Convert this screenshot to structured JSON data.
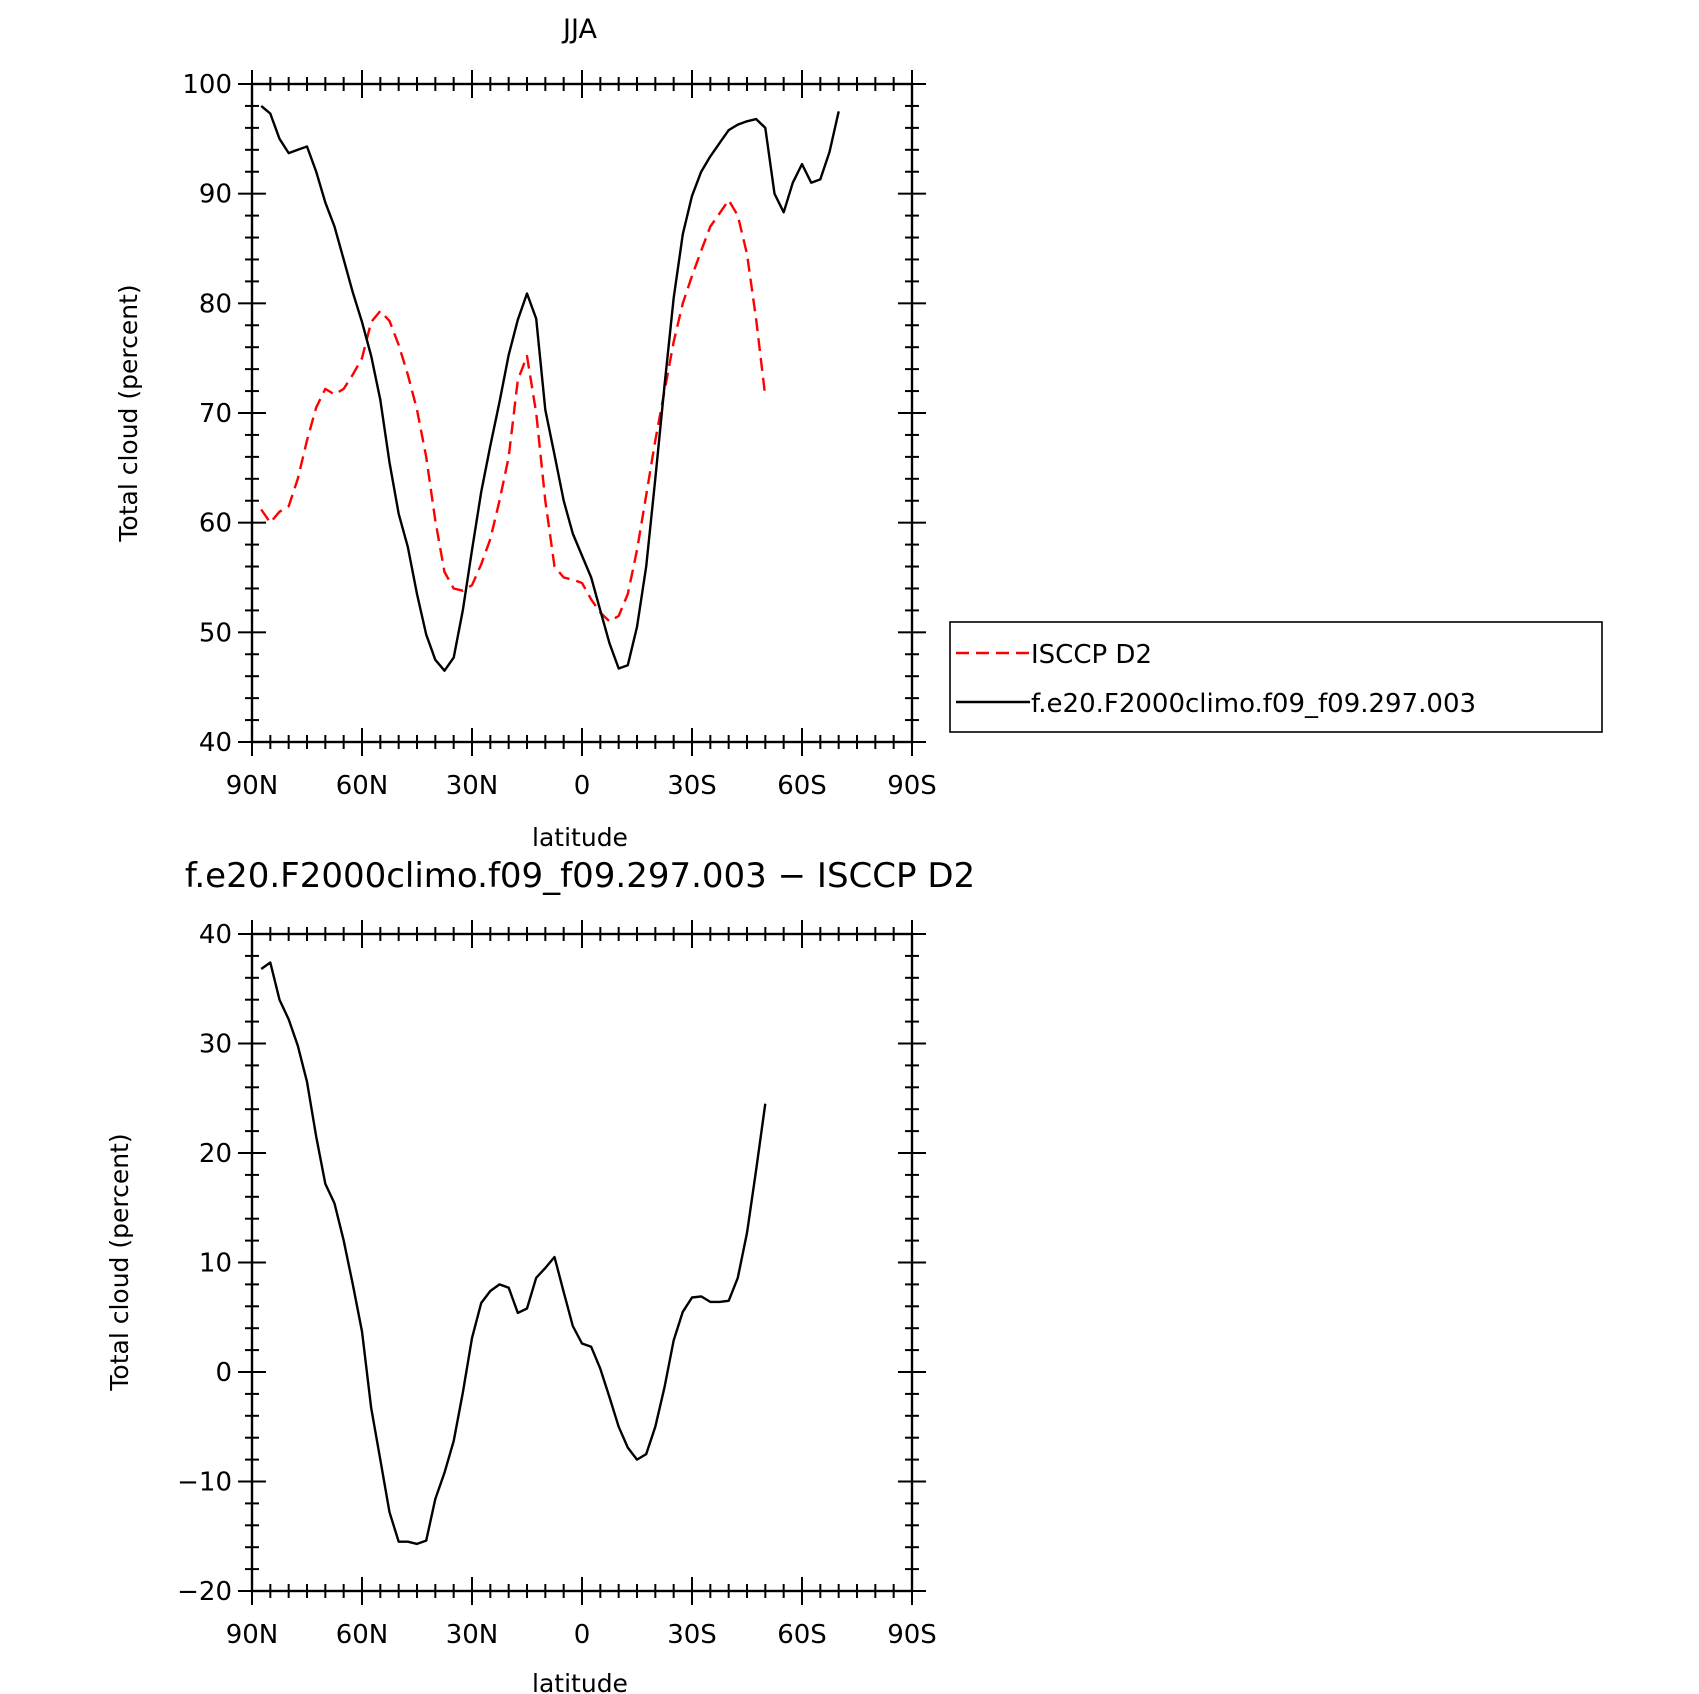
{
  "chart_data": [
    {
      "type": "line",
      "title": "JJA",
      "xlabel": "latitude",
      "ylabel": "Total cloud (percent)",
      "xlim": [
        90,
        -90
      ],
      "ylim": [
        40,
        100
      ],
      "xticks": [
        90,
        60,
        30,
        0,
        -30,
        -60,
        -90
      ],
      "xtick_labels": [
        "90N",
        "60N",
        "30N",
        "0",
        "30S",
        "60S",
        "90S"
      ],
      "yticks": [
        40,
        50,
        60,
        70,
        80,
        90,
        100
      ],
      "ytick_labels": [
        "40",
        "50",
        "60",
        "70",
        "80",
        "90",
        "100"
      ],
      "legend_position": "right",
      "series": [
        {
          "name": "ISCCP D2",
          "color": "#ff0000",
          "dash": "dashed",
          "points": [
            [
              87.5,
              61.2
            ],
            [
              85,
              60.0
            ],
            [
              82.5,
              61.0
            ],
            [
              80,
              61.5
            ],
            [
              77.5,
              64.0
            ],
            [
              75,
              67.5
            ],
            [
              72.5,
              70.5
            ],
            [
              70,
              72.2
            ],
            [
              67.5,
              71.7
            ],
            [
              65,
              72.2
            ],
            [
              62.5,
              73.5
            ],
            [
              60,
              75.0
            ],
            [
              57.5,
              78.3
            ],
            [
              55,
              79.3
            ],
            [
              52.5,
              78.4
            ],
            [
              50,
              76.2
            ],
            [
              47.5,
              73.5
            ],
            [
              45,
              70.3
            ],
            [
              42.5,
              66.0
            ],
            [
              40,
              60.2
            ],
            [
              37.5,
              55.5
            ],
            [
              35,
              54.0
            ],
            [
              32.5,
              53.8
            ],
            [
              30,
              54.3
            ],
            [
              27.5,
              56.2
            ],
            [
              25,
              58.5
            ],
            [
              22.5,
              62.0
            ],
            [
              20,
              66.0
            ],
            [
              17.5,
              73.0
            ],
            [
              15,
              75.2
            ],
            [
              12.5,
              70.0
            ],
            [
              10,
              62.0
            ],
            [
              7.5,
              56.0
            ],
            [
              5,
              55.0
            ],
            [
              2.5,
              54.8
            ],
            [
              0,
              54.5
            ],
            [
              -2.5,
              53.0
            ],
            [
              -5,
              51.8
            ],
            [
              -7.5,
              51.0
            ],
            [
              -10,
              51.5
            ],
            [
              -12.5,
              53.5
            ],
            [
              -15,
              57.5
            ],
            [
              -17.5,
              62.5
            ],
            [
              -20,
              67.5
            ],
            [
              -22.5,
              72.0
            ],
            [
              -25,
              76.5
            ],
            [
              -27.5,
              80.0
            ],
            [
              -30,
              82.5
            ],
            [
              -32.5,
              84.8
            ],
            [
              -35,
              87.0
            ],
            [
              -37.5,
              88.2
            ],
            [
              -40,
              89.4
            ],
            [
              -42.5,
              88.0
            ],
            [
              -45,
              84.5
            ],
            [
              -47.5,
              78.5
            ],
            [
              -50,
              71.5
            ]
          ]
        },
        {
          "name": "f.e20.F2000climo.f09_f09.297.003",
          "color": "#000000",
          "dash": "solid",
          "points": [
            [
              87.5,
              98.0
            ],
            [
              85,
              97.3
            ],
            [
              82.5,
              95.0
            ],
            [
              80,
              93.7
            ],
            [
              77.5,
              94.0
            ],
            [
              75,
              94.3
            ],
            [
              72.5,
              92.0
            ],
            [
              70,
              89.2
            ],
            [
              67.5,
              87.0
            ],
            [
              65,
              84.0
            ],
            [
              62.5,
              81.0
            ],
            [
              60,
              78.3
            ],
            [
              57.5,
              75.2
            ],
            [
              55,
              71.2
            ],
            [
              52.5,
              65.5
            ],
            [
              50,
              60.8
            ],
            [
              47.5,
              57.8
            ],
            [
              45,
              53.5
            ],
            [
              42.5,
              49.8
            ],
            [
              40,
              47.5
            ],
            [
              37.5,
              46.5
            ],
            [
              35,
              47.7
            ],
            [
              32.5,
              52.0
            ],
            [
              30,
              57.5
            ],
            [
              27.5,
              62.8
            ],
            [
              25,
              67.0
            ],
            [
              22.5,
              71.0
            ],
            [
              20,
              75.3
            ],
            [
              17.5,
              78.5
            ],
            [
              15,
              80.9
            ],
            [
              12.5,
              78.6
            ],
            [
              10,
              70.3
            ],
            [
              7.5,
              66.2
            ],
            [
              5,
              62.0
            ],
            [
              2.5,
              59.0
            ],
            [
              0,
              57.0
            ],
            [
              -2.5,
              55.0
            ],
            [
              -5,
              52.0
            ],
            [
              -7.5,
              49.0
            ],
            [
              -10,
              46.7
            ],
            [
              -12.5,
              47.0
            ],
            [
              -15,
              50.5
            ],
            [
              -17.5,
              56.0
            ],
            [
              -20,
              64.0
            ],
            [
              -22.5,
              72.5
            ],
            [
              -25,
              80.5
            ],
            [
              -27.5,
              86.3
            ],
            [
              -30,
              89.8
            ],
            [
              -32.5,
              92.0
            ],
            [
              -35,
              93.4
            ],
            [
              -37.5,
              94.6
            ],
            [
              -40,
              95.8
            ],
            [
              -42.5,
              96.3
            ],
            [
              -45,
              96.6
            ],
            [
              -47.5,
              96.8
            ],
            [
              -50,
              96.0
            ],
            [
              -52.5,
              90.0
            ],
            [
              -55,
              88.3
            ],
            [
              -57.5,
              91.0
            ],
            [
              -60,
              92.7
            ],
            [
              -62.5,
              91.0
            ],
            [
              -65,
              91.3
            ],
            [
              -67.5,
              93.8
            ],
            [
              -70,
              97.5
            ]
          ]
        }
      ]
    },
    {
      "type": "line",
      "title": "f.e20.F2000climo.f09_f09.297.003 − ISCCP D2",
      "xlabel": "latitude",
      "ylabel": "Total cloud (percent)",
      "xlim": [
        90,
        -90
      ],
      "ylim": [
        -20,
        40
      ],
      "xticks": [
        90,
        60,
        30,
        0,
        -30,
        -60,
        -90
      ],
      "xtick_labels": [
        "90N",
        "60N",
        "30N",
        "0",
        "30S",
        "60S",
        "90S"
      ],
      "yticks": [
        -20,
        -10,
        0,
        10,
        20,
        30,
        40
      ],
      "ytick_labels": [
        "−20",
        "−10",
        "0",
        "10",
        "20",
        "30",
        "40"
      ],
      "series": [
        {
          "color": "#000000",
          "dash": "solid",
          "points": [
            [
              87.5,
              36.8
            ],
            [
              85,
              37.4
            ],
            [
              82.5,
              34.0
            ],
            [
              80,
              32.2
            ],
            [
              77.5,
              29.8
            ],
            [
              75,
              26.5
            ],
            [
              72.5,
              21.5
            ],
            [
              70,
              17.2
            ],
            [
              67.5,
              15.4
            ],
            [
              65,
              12.0
            ],
            [
              62.5,
              8.0
            ],
            [
              60,
              3.7
            ],
            [
              57.5,
              -3.3
            ],
            [
              55,
              -8.0
            ],
            [
              52.5,
              -12.8
            ],
            [
              50,
              -15.5
            ],
            [
              47.5,
              -15.5
            ],
            [
              45,
              -15.7
            ],
            [
              42.5,
              -15.4
            ],
            [
              40,
              -11.6
            ],
            [
              37.5,
              -9.2
            ],
            [
              35,
              -6.3
            ],
            [
              32.5,
              -1.9
            ],
            [
              30,
              3.1
            ],
            [
              27.5,
              6.3
            ],
            [
              25,
              7.4
            ],
            [
              22.5,
              8.0
            ],
            [
              20,
              7.7
            ],
            [
              17.5,
              5.4
            ],
            [
              15,
              5.8
            ],
            [
              12.5,
              8.6
            ],
            [
              10,
              9.5
            ],
            [
              7.5,
              10.5
            ],
            [
              5,
              7.3
            ],
            [
              2.5,
              4.2
            ],
            [
              0,
              2.6
            ],
            [
              -2.5,
              2.3
            ],
            [
              -5,
              0.3
            ],
            [
              -7.5,
              -2.3
            ],
            [
              -10,
              -5.0
            ],
            [
              -12.5,
              -6.9
            ],
            [
              -15,
              -8.0
            ],
            [
              -17.5,
              -7.5
            ],
            [
              -20,
              -5.0
            ],
            [
              -22.5,
              -1.4
            ],
            [
              -25,
              2.9
            ],
            [
              -27.5,
              5.5
            ],
            [
              -30,
              6.8
            ],
            [
              -32.5,
              6.9
            ],
            [
              -35,
              6.4
            ],
            [
              -37.5,
              6.4
            ],
            [
              -40,
              6.5
            ],
            [
              -42.5,
              8.6
            ],
            [
              -45,
              12.7
            ],
            [
              -47.5,
              18.5
            ],
            [
              -50,
              24.5
            ]
          ]
        }
      ]
    }
  ]
}
